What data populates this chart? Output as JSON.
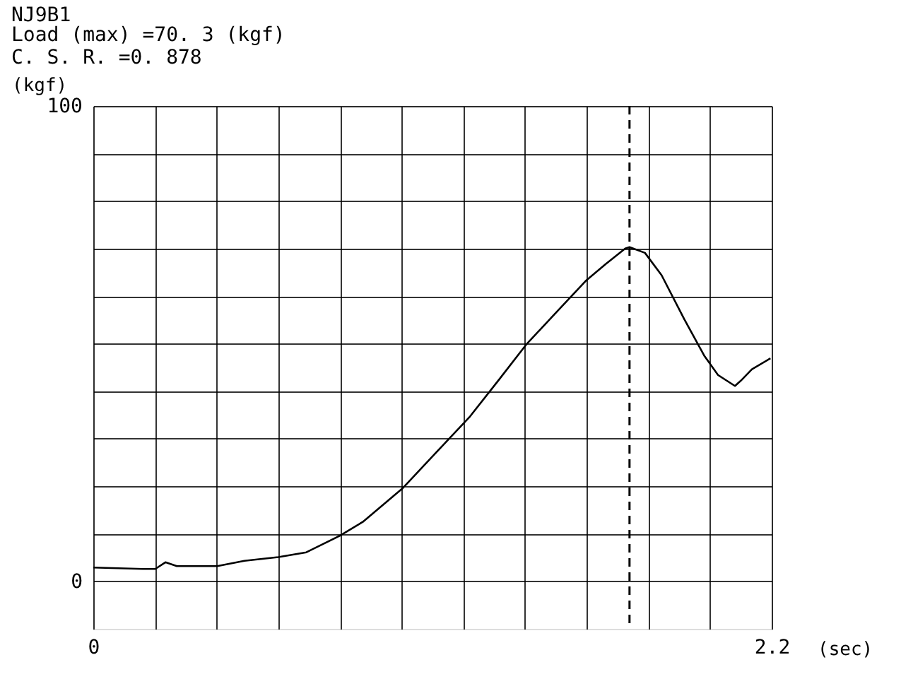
{
  "chart_data": {
    "type": "line",
    "title": "NJ9B1",
    "subtitle": "Load (max) =70. 3 (kgf)\nC. S. R. =0. 878",
    "ylabel": "(kgf)",
    "x": [
      0,
      0.161,
      0.201,
      0.234,
      0.271,
      0.402,
      0.49,
      0.6,
      0.691,
      0.8,
      0.874,
      1.002,
      1.112,
      1.222,
      1.313,
      1.404,
      1.496,
      1.597,
      1.661,
      1.725,
      1.739,
      1.789,
      1.843,
      1.917,
      1.981,
      2.026,
      2.081,
      2.1,
      2.136,
      2.196
    ],
    "series": [
      {
        "color": "#000000",
        "values": [
          2.9,
          2.6,
          2.6,
          4.0,
          3.2,
          3.2,
          4.3,
          5.1,
          6.1,
          9.6,
          12.5,
          19.5,
          27.1,
          34.7,
          42.2,
          49.8,
          56.2,
          63.2,
          66.7,
          70.0,
          70.3,
          69.1,
          64.4,
          55.1,
          47.5,
          43.4,
          41.1,
          42.2,
          44.6,
          46.9
        ]
      }
    ],
    "xlim": [
      0,
      2.2
    ],
    "ylim": [
      -10,
      100
    ],
    "xticks": [
      0,
      {
        "value": 0.2,
        "label": null
      },
      {
        "value": 0.4,
        "label": null
      },
      {
        "value": 0.6,
        "label": null
      },
      {
        "value": 0.8,
        "label": null
      },
      {
        "value": 1.0,
        "label": null
      },
      {
        "value": 1.2,
        "label": null
      },
      {
        "value": 1.4,
        "label": null
      },
      {
        "value": 1.6,
        "label": null
      },
      {
        "value": 1.8,
        "label": null
      },
      {
        "value": 2.0,
        "label": null
      },
      2.2
    ],
    "xlabel": "(sec)",
    "yticks": [
      0,
      {
        "value": 10,
        "label": null
      },
      {
        "value": 20,
        "label": null
      },
      {
        "value": 30,
        "label": null
      },
      {
        "value": 40,
        "label": null
      },
      {
        "value": 50,
        "label": null
      },
      {
        "value": 60,
        "label": null
      },
      {
        "value": 70,
        "label": null
      },
      {
        "value": 80,
        "label": null
      },
      {
        "value": 90,
        "label": null
      },
      100
    ],
    "ref_lines": [
      {
        "axis": "x",
        "value": 1.739,
        "color": "#000000",
        "line_style": "dashed"
      }
    ],
    "grid": true,
    "marker": "none",
    "line_style": "solid",
    "legend": false
  }
}
